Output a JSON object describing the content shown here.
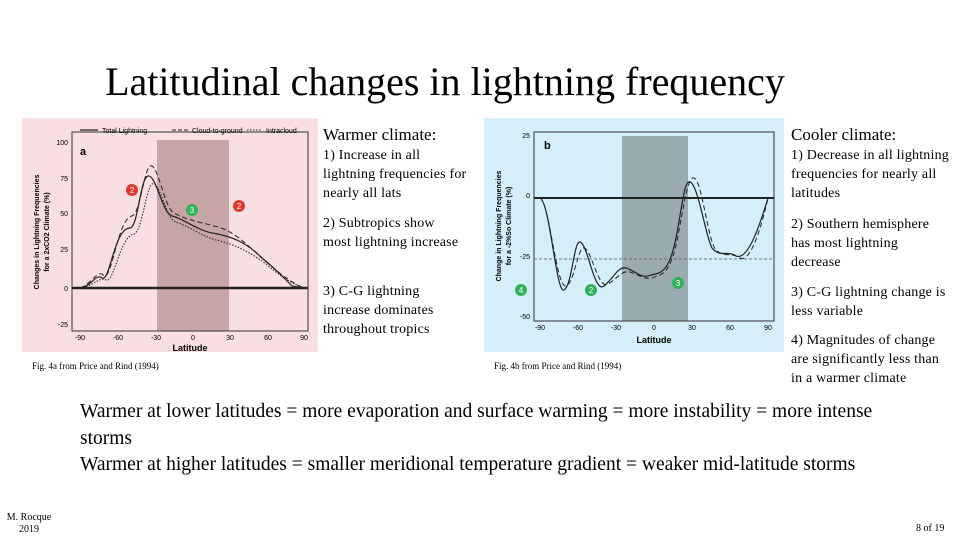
{
  "title": "Latitudinal changes in lightning frequency",
  "warmer": {
    "heading": "Warmer climate:",
    "items": [
      "1) Increase in all lightning frequencies for nearly all lats",
      "2) Subtropics show most lightning increase",
      "3) C-G lightning increase dominates throughout tropics"
    ]
  },
  "cooler": {
    "heading": "Cooler climate:",
    "items": [
      "1) Decrease in all lightning frequencies for nearly all latitudes",
      "2) Southern hemisphere has most lightning decrease",
      "3) C-G lightning change is less variable",
      "4) Magnitudes of change are significantly less than in a warmer climate"
    ]
  },
  "figure_a": {
    "panel_label": "a",
    "legend": [
      "Total Lightning",
      "Cloud-to-ground",
      "Intracloud"
    ],
    "ylabel_line1": "Changes in Lightning Frequencies",
    "ylabel_line2": "for a 2xCO2 Climate (%)",
    "xlabel": "Latitude",
    "yticks": [
      "100",
      "75",
      "50",
      "25",
      "0",
      "-25"
    ],
    "xticks": [
      "-90",
      "-60",
      "-30",
      "0",
      "30",
      "60",
      "90"
    ],
    "markers": [
      "2",
      "3",
      "2"
    ],
    "caption": "Fig. 4a from Price and Rind (1994)",
    "background_color": "#f8dfe2",
    "band_color": "#c7a5a6"
  },
  "figure_b": {
    "panel_label": "b",
    "ylabel_line1": "Change in Lightning Frequencies",
    "ylabel_line2": "for a -2%So Climate (%)",
    "xlabel": "Latitude",
    "yticks": [
      "25",
      "0",
      "-25",
      "-50"
    ],
    "xticks": [
      "-90",
      "-60",
      "-30",
      "0",
      "30",
      "60",
      "90"
    ],
    "markers": [
      "4",
      "2",
      "3"
    ],
    "caption": "Fig. 4b from Price and Rind (1994)",
    "background_color": "#d5eef8",
    "band_color": "#9aabb2"
  },
  "marker_colors": {
    "red": "#e03a2f",
    "green": "#2fb35a"
  },
  "bottom_text": [
    "Warmer at lower latitudes = more evaporation and surface warming = more instability = more intense storms",
    "Warmer at higher latitudes = smaller meridional temperature gradient = weaker mid-latitude storms"
  ],
  "footer": {
    "author": "M. Rocque",
    "year": "2019"
  },
  "page_number": "8 of 19"
}
